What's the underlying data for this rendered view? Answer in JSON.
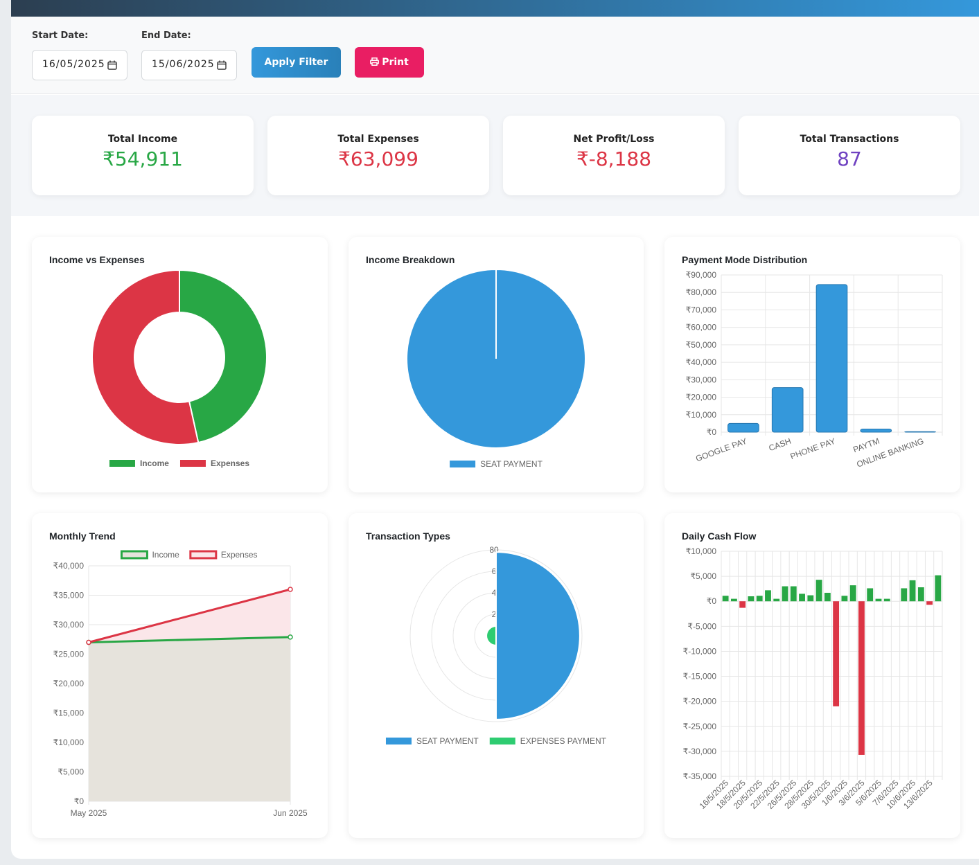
{
  "filters": {
    "start_label": "Start Date:",
    "start_value": "16/05/2025",
    "end_label": "End Date:",
    "end_value": "15/06/2025",
    "apply": "Apply Filter",
    "print": "Print"
  },
  "stats": [
    {
      "label": "Total Income",
      "value": "₹54,911",
      "color": "#28a745"
    },
    {
      "label": "Total Expenses",
      "value": "₹63,099",
      "color": "#dc3545"
    },
    {
      "label": "Net Profit/Loss",
      "value": "₹-8,188",
      "color": "#dc3545"
    },
    {
      "label": "Total Transactions",
      "value": "87",
      "color": "#6f42c1"
    }
  ],
  "chart_data": [
    {
      "type": "doughnut",
      "title": "Income vs Expenses",
      "categories": [
        "Income",
        "Expenses"
      ],
      "values": [
        54911,
        63099
      ],
      "colors": [
        "#28a745",
        "#dc3545"
      ]
    },
    {
      "type": "pie",
      "title": "Income Breakdown",
      "categories": [
        "SEAT PAYMENT"
      ],
      "values": [
        54911
      ],
      "colors": [
        "#3498db"
      ]
    },
    {
      "type": "bar",
      "title": "Payment Mode Distribution",
      "categories": [
        "GOOGLE PAY",
        "CASH",
        "PHONE PAY",
        "PAYTM",
        "ONLINE BANKING"
      ],
      "values": [
        5000,
        25500,
        84500,
        1800,
        300
      ],
      "color": "#3498db",
      "border_color": "#2677b0",
      "ylim": [
        0,
        90000
      ],
      "yticks": [
        {
          "value": 0,
          "label": "₹0"
        },
        {
          "value": 10000,
          "label": "₹10,000"
        },
        {
          "value": 20000,
          "label": "₹20,000"
        },
        {
          "value": 30000,
          "label": "₹30,000"
        },
        {
          "value": 40000,
          "label": "₹40,000"
        },
        {
          "value": 50000,
          "label": "₹50,000"
        },
        {
          "value": 60000,
          "label": "₹60,000"
        },
        {
          "value": 70000,
          "label": "₹70,000"
        },
        {
          "value": 80000,
          "label": "₹80,000"
        },
        {
          "value": 90000,
          "label": "₹90,000"
        }
      ],
      "grid": true
    },
    {
      "type": "line",
      "title": "Monthly Trend",
      "categories": [
        "May 2025",
        "Jun 2025"
      ],
      "series": [
        {
          "name": "Income",
          "color": "#28a745",
          "fill": "#e6e3dc",
          "values": [
            27000,
            27900
          ]
        },
        {
          "name": "Expenses",
          "color": "#dc3545",
          "fill": "#fbe6e9",
          "values": [
            27000,
            36000
          ]
        }
      ],
      "ylim": [
        0,
        40000
      ],
      "yticks": [
        {
          "value": 0,
          "label": "₹0"
        },
        {
          "value": 5000,
          "label": "₹5,000"
        },
        {
          "value": 10000,
          "label": "₹10,000"
        },
        {
          "value": 15000,
          "label": "₹15,000"
        },
        {
          "value": 20000,
          "label": "₹20,000"
        },
        {
          "value": 25000,
          "label": "₹25,000"
        },
        {
          "value": 30000,
          "label": "₹30,000"
        },
        {
          "value": 35000,
          "label": "₹35,000"
        },
        {
          "value": 40000,
          "label": "₹40,000"
        }
      ],
      "grid": true
    },
    {
      "type": "polarArea",
      "title": "Transaction Types",
      "categories": [
        "SEAT PAYMENT",
        "EXPENSES PAYMENT"
      ],
      "values": [
        78,
        9
      ],
      "colors": [
        "#3498db",
        "#2ecc71"
      ],
      "rlim": [
        0,
        80
      ],
      "rticks": [
        {
          "value": 20,
          "label": "2"
        },
        {
          "value": 40,
          "label": "4"
        },
        {
          "value": 60,
          "label": "6"
        },
        80
      ]
    },
    {
      "type": "bar",
      "title": "Daily Cash Flow",
      "categories": [
        "16/5/2025",
        null,
        "18/5/2025",
        null,
        "20/5/2025",
        null,
        "22/5/2025",
        null,
        "26/5/2025",
        null,
        "28/5/2025",
        null,
        "30/5/2025",
        null,
        "1/6/2025",
        null,
        "3/6/2025",
        null,
        "5/6/2025",
        null,
        "7/6/2025",
        null,
        "10/6/2025",
        null,
        "13/6/2025",
        null
      ],
      "values": [
        1100,
        500,
        -1300,
        1000,
        1100,
        2200,
        500,
        3000,
        3000,
        1500,
        1200,
        4300,
        1700,
        -21000,
        1100,
        3200,
        -30700,
        2600,
        500,
        500,
        0,
        2600,
        4200,
        2800,
        -700,
        5200
      ],
      "color": "#28a745",
      "negative_color": "#dc3545",
      "ylim": [
        -35000,
        10000
      ],
      "yticks": [
        {
          "value": -35000,
          "label": "₹-35,000"
        },
        {
          "value": -30000,
          "label": "₹-30,000"
        },
        {
          "value": -25000,
          "label": "₹-25,000"
        },
        {
          "value": -20000,
          "label": "₹-20,000"
        },
        {
          "value": -15000,
          "label": "₹-15,000"
        },
        {
          "value": -10000,
          "label": "₹-10,000"
        },
        {
          "value": -5000,
          "label": "₹-5,000"
        },
        {
          "value": 0,
          "label": "₹0"
        },
        {
          "value": 5000,
          "label": "₹5,000"
        },
        {
          "value": 10000,
          "label": "₹10,000"
        }
      ],
      "grid": true
    }
  ]
}
